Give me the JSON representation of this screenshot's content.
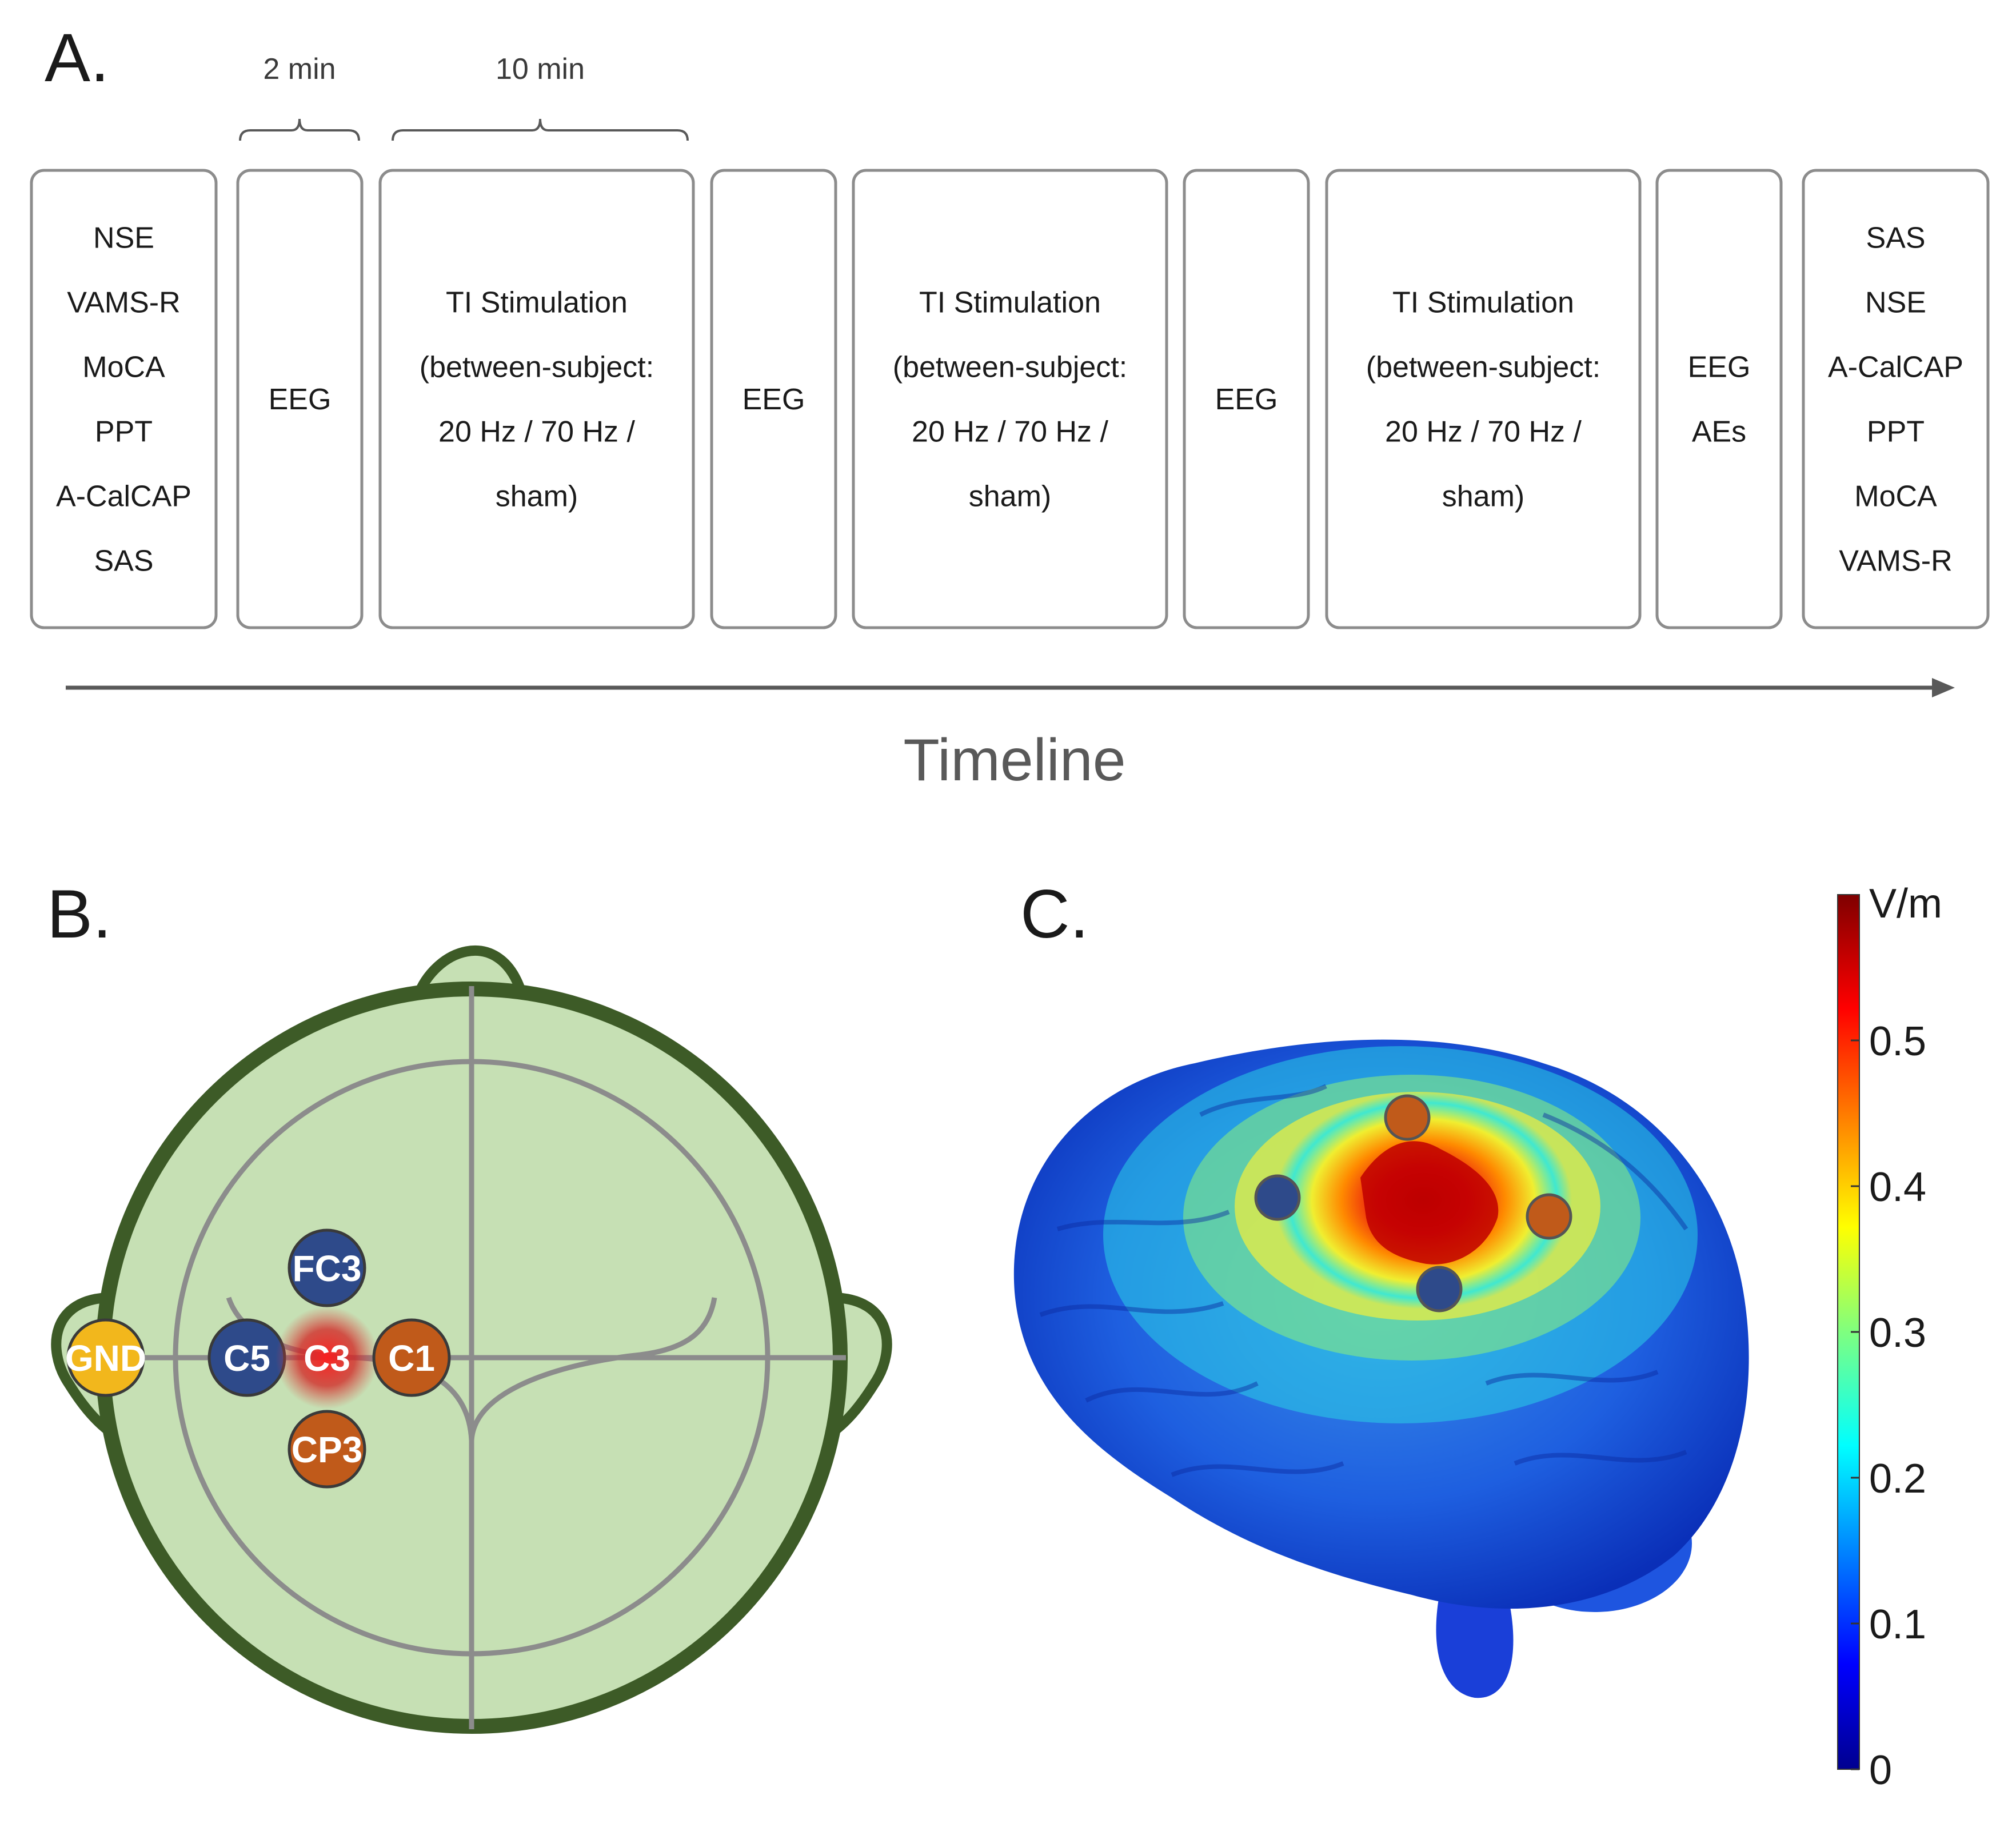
{
  "panel_a": {
    "label": "A.",
    "braces": [
      {
        "id": "brace-2min",
        "label": "2 min"
      },
      {
        "id": "brace-10min",
        "label": "10 min"
      }
    ],
    "boxes": [
      {
        "id": "pre-assessment",
        "lines": [
          "NSE",
          "VAMS-R",
          "MoCA",
          "PPT",
          "A-CalCAP",
          "SAS"
        ]
      },
      {
        "id": "eeg-1",
        "lines": [
          "EEG"
        ]
      },
      {
        "id": "stim-1",
        "lines": [
          "TI Stimulation",
          "(between-subject:",
          "20 Hz / 70 Hz /",
          "sham)"
        ]
      },
      {
        "id": "eeg-2",
        "lines": [
          "EEG"
        ]
      },
      {
        "id": "stim-2",
        "lines": [
          "TI Stimulation",
          "(between-subject:",
          "20 Hz / 70 Hz /",
          "sham)"
        ]
      },
      {
        "id": "eeg-3",
        "lines": [
          "EEG"
        ]
      },
      {
        "id": "stim-3",
        "lines": [
          "TI Stimulation",
          "(between-subject:",
          "20 Hz / 70 Hz /",
          "sham)"
        ]
      },
      {
        "id": "eeg-aes",
        "lines": [
          "EEG",
          "AEs"
        ]
      },
      {
        "id": "post-assessment",
        "lines": [
          "SAS",
          "NSE",
          "A-CalCAP",
          "PPT",
          "MoCA",
          "VAMS-R"
        ]
      }
    ],
    "timeline_label": "Timeline"
  },
  "panel_b": {
    "label": "B.",
    "electrodes": [
      {
        "id": "FC3",
        "label": "FC3",
        "role": "stim-pair-1",
        "color": "#2e4a8a"
      },
      {
        "id": "C5",
        "label": "C5",
        "role": "stim-pair-1",
        "color": "#2e4a8a"
      },
      {
        "id": "C3",
        "label": "C3",
        "role": "target",
        "color": "#c0221e"
      },
      {
        "id": "C1",
        "label": "C1",
        "role": "stim-pair-2",
        "color": "#c05a1a"
      },
      {
        "id": "CP3",
        "label": "CP3",
        "role": "stim-pair-2",
        "color": "#c05a1a"
      },
      {
        "id": "GND",
        "label": "GND",
        "role": "ground",
        "color": "#f2b71c"
      }
    ],
    "colors": {
      "head_fill": "#c6e0b4",
      "head_outline": "#3d5b27",
      "grid_lines": "#8c8c8c"
    }
  },
  "panel_c": {
    "label": "C.",
    "colorbar": {
      "unit": "V/m",
      "min": 0,
      "max": 0.6,
      "ticks": [
        "0",
        "0.1",
        "0.2",
        "0.3",
        "0.4",
        "0.5"
      ],
      "colormap": "jet"
    },
    "electrode_markers": [
      {
        "id": "brain-blue-1",
        "color": "#2e4a8a"
      },
      {
        "id": "brain-blue-2",
        "color": "#2e4a8a"
      },
      {
        "id": "brain-orange-1",
        "color": "#c05a1a"
      },
      {
        "id": "brain-orange-2",
        "color": "#c05a1a"
      }
    ]
  }
}
